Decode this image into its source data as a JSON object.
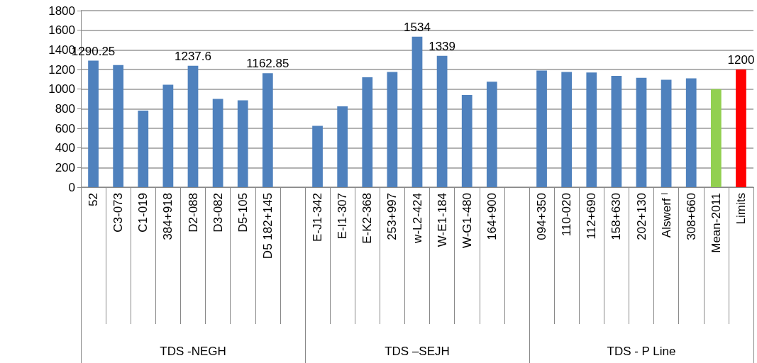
{
  "chart_data": {
    "type": "bar",
    "categories": [
      "52",
      "C3-073",
      "C1-019",
      "384+918",
      "D2-088",
      "D3-082",
      "D5-105",
      "D5 182+145",
      null,
      "E-J1-342",
      "E-I1-307",
      "E-K2-368",
      "253+997",
      "w-L2-424",
      "W-E1-184",
      "W-G1-480",
      "164+900",
      null,
      "094+350",
      "110-020",
      "112+690",
      "158+630",
      "202+130",
      "Alswerf ˡ",
      "308+660",
      "Mean-2011",
      "Limits"
    ],
    "values": [
      1290.25,
      1245,
      780,
      1045,
      1237.6,
      900,
      885,
      1162.85,
      null,
      625,
      825,
      1120,
      1175,
      1534,
      1339,
      940,
      1075,
      null,
      1190,
      1175,
      1170,
      1135,
      1115,
      1095,
      1110,
      1000,
      1200
    ],
    "colors": [
      "#4f81bd",
      "#4f81bd",
      "#4f81bd",
      "#4f81bd",
      "#4f81bd",
      "#4f81bd",
      "#4f81bd",
      "#4f81bd",
      null,
      "#4f81bd",
      "#4f81bd",
      "#4f81bd",
      "#4f81bd",
      "#4f81bd",
      "#4f81bd",
      "#4f81bd",
      "#4f81bd",
      null,
      "#4f81bd",
      "#4f81bd",
      "#4f81bd",
      "#4f81bd",
      "#4f81bd",
      "#4f81bd",
      "#4f81bd",
      "#92d050",
      "#ff0000"
    ],
    "value_labels": [
      "1290.25",
      null,
      null,
      null,
      "1237.6",
      null,
      null,
      "1162.85",
      null,
      null,
      null,
      null,
      null,
      "1534",
      "1339",
      null,
      null,
      null,
      null,
      null,
      null,
      null,
      null,
      null,
      null,
      null,
      "1200"
    ],
    "annotations": [
      "TDS -NEGH",
      "TDS –SEJH",
      "TDS - P Line"
    ],
    "ylim": [
      0,
      1800
    ],
    "yticks": [
      0,
      200,
      400,
      600,
      800,
      1000,
      1200,
      1400,
      1600,
      1800
    ],
    "grid": "y"
  }
}
